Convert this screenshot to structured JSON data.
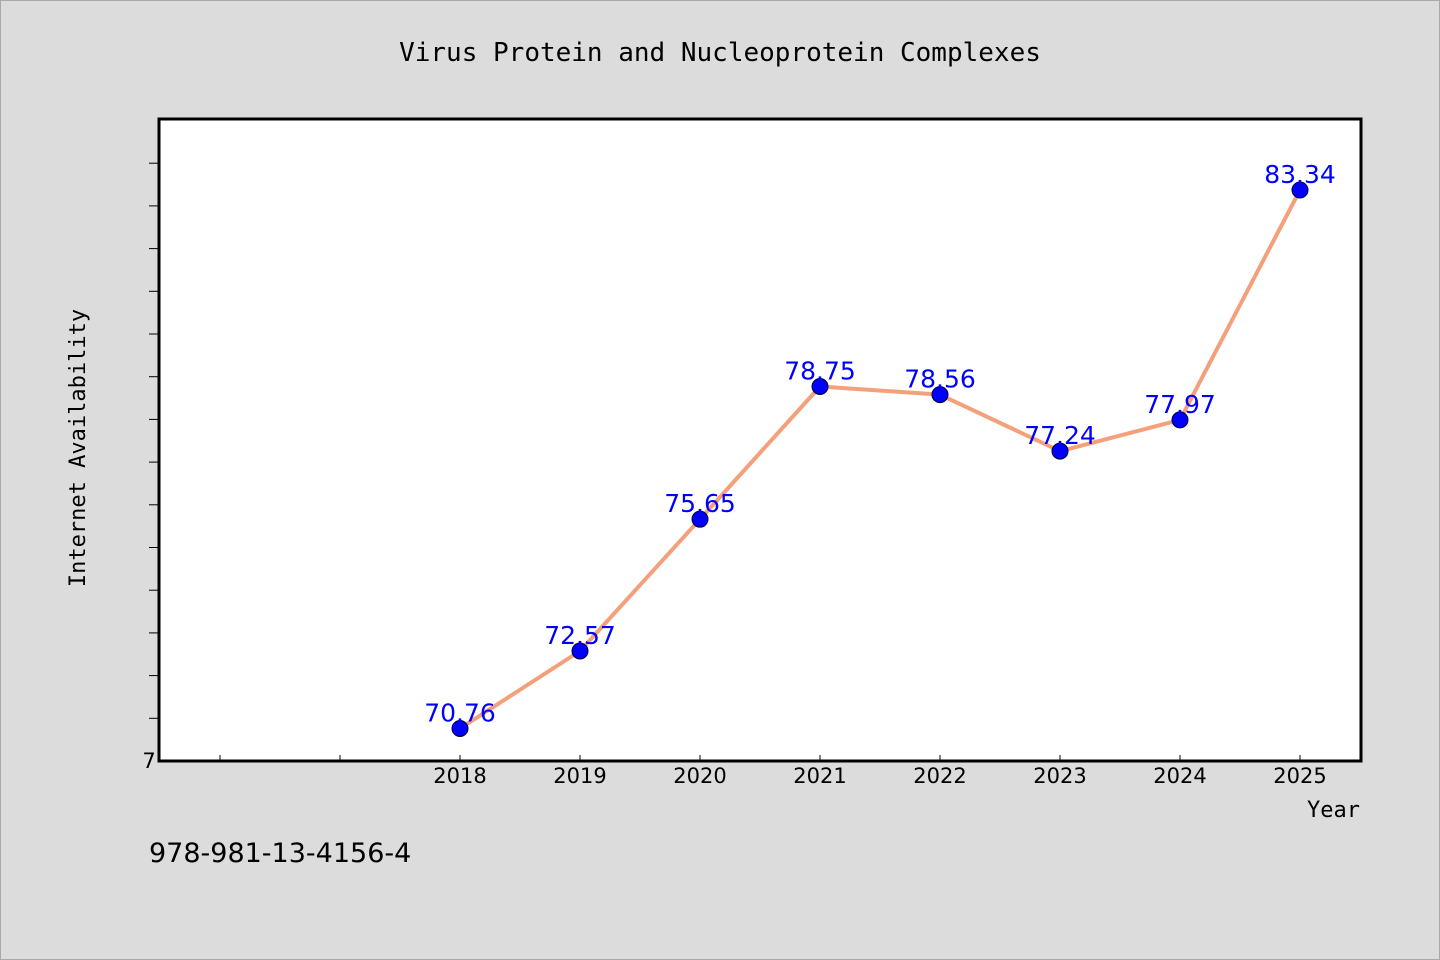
{
  "chart_data": {
    "type": "line",
    "title": "Virus Protein and Nucleoprotein Complexes",
    "xlabel": "Year",
    "ylabel": "Internet Availability",
    "categories": [
      "2018",
      "2019",
      "2020",
      "2021",
      "2022",
      "2023",
      "2024",
      "2025"
    ],
    "series": [
      {
        "values": [
          70.76,
          72.57,
          75.65,
          78.75,
          78.56,
          77.24,
          77.97,
          83.34
        ],
        "line_color": "#f4a07a",
        "marker_color": "#0000ff"
      }
    ],
    "y_axis_visible_tick_label": "7",
    "ylim": [
      70,
      85
    ],
    "x_slots": 10,
    "grid": false,
    "legend": "none"
  },
  "footer": {
    "isbn": "978-981-13-4156-4"
  }
}
